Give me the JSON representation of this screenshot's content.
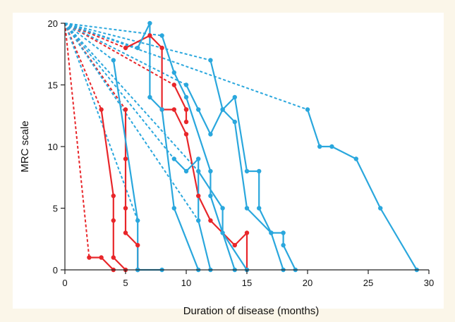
{
  "chart_data": {
    "type": "line",
    "title": "",
    "xlabel": "Duration of disease (months)",
    "ylabel": "MRC scale",
    "xlim": [
      0,
      30
    ],
    "ylim": [
      0,
      20
    ],
    "x_ticks": [
      "0",
      "5",
      "10",
      "15",
      "20",
      "25",
      "30"
    ],
    "y_ticks": [
      "0",
      "5",
      "10",
      "15",
      "20"
    ],
    "grid": false,
    "legend": "none",
    "start_point": {
      "x": 0,
      "y": 20
    },
    "colors": {
      "red": "#e8262a",
      "blue": "#2aa7dd"
    },
    "series": [
      {
        "color": "red",
        "values": [
          [
            2,
            1
          ],
          [
            3,
            1
          ],
          [
            4,
            0
          ]
        ]
      },
      {
        "color": "red",
        "values": [
          [
            3,
            13
          ],
          [
            4,
            6
          ],
          [
            4,
            4
          ],
          [
            4,
            1
          ],
          [
            5,
            0
          ]
        ]
      },
      {
        "color": "red",
        "values": [
          [
            5,
            13
          ],
          [
            5,
            9
          ],
          [
            5,
            5
          ],
          [
            5,
            3
          ],
          [
            6,
            2
          ],
          [
            6,
            0
          ]
        ]
      },
      {
        "color": "red",
        "values": [
          [
            5,
            18
          ],
          [
            7,
            19
          ],
          [
            8,
            18
          ],
          [
            8,
            13
          ],
          [
            9,
            13
          ],
          [
            10,
            11
          ],
          [
            11,
            6
          ],
          [
            12,
            4
          ],
          [
            14,
            2
          ],
          [
            15,
            3
          ],
          [
            15,
            0
          ]
        ]
      },
      {
        "color": "red",
        "values": [
          [
            9,
            15
          ],
          [
            10,
            13
          ],
          [
            10,
            12
          ],
          [
            10,
            13
          ]
        ]
      },
      {
        "color": "blue",
        "values": [
          [
            4,
            17
          ],
          [
            6,
            4
          ],
          [
            6,
            0
          ]
        ]
      },
      {
        "color": "blue",
        "values": [
          [
            6,
            18
          ],
          [
            7,
            20
          ],
          [
            7,
            14
          ],
          [
            8,
            13
          ],
          [
            9,
            5
          ],
          [
            11,
            0
          ]
        ]
      },
      {
        "color": "blue",
        "values": [
          [
            8,
            19
          ],
          [
            9,
            16
          ],
          [
            10,
            14
          ],
          [
            12,
            8
          ],
          [
            12,
            6
          ],
          [
            14,
            0
          ]
        ]
      },
      {
        "color": "blue",
        "values": [
          [
            9,
            9
          ],
          [
            10,
            8
          ],
          [
            11,
            9
          ],
          [
            11,
            4
          ],
          [
            12,
            0
          ]
        ]
      },
      {
        "color": "blue",
        "values": [
          [
            10,
            15
          ],
          [
            11,
            13
          ],
          [
            12,
            11
          ],
          [
            13,
            13
          ],
          [
            14,
            14
          ],
          [
            15,
            8
          ],
          [
            16,
            8
          ],
          [
            16,
            5
          ],
          [
            17,
            3
          ],
          [
            18,
            3
          ],
          [
            18,
            2
          ],
          [
            19,
            0
          ]
        ]
      },
      {
        "color": "blue",
        "values": [
          [
            12,
            17
          ],
          [
            13,
            13
          ],
          [
            14,
            12
          ],
          [
            15,
            5
          ],
          [
            17,
            3
          ],
          [
            18,
            0
          ]
        ]
      },
      {
        "color": "blue",
        "values": [
          [
            11,
            8
          ],
          [
            13,
            5
          ],
          [
            13,
            3
          ],
          [
            15,
            0
          ]
        ]
      },
      {
        "color": "blue",
        "values": [
          [
            20,
            13
          ],
          [
            21,
            10
          ],
          [
            22,
            10
          ],
          [
            24,
            9
          ],
          [
            26,
            5
          ],
          [
            29,
            0
          ]
        ]
      },
      {
        "color": "blue",
        "values": [
          [
            6,
            0
          ],
          [
            8,
            0
          ]
        ]
      }
    ],
    "dashed_onset": [
      {
        "color": "red",
        "to": [
          2,
          1
        ]
      },
      {
        "color": "red",
        "to": [
          3,
          13
        ]
      },
      {
        "color": "red",
        "to": [
          5,
          13
        ]
      },
      {
        "color": "red",
        "to": [
          5,
          18
        ]
      },
      {
        "color": "red",
        "to": [
          9,
          15
        ]
      },
      {
        "color": "blue",
        "to": [
          4,
          17
        ]
      },
      {
        "color": "blue",
        "to": [
          6,
          4
        ]
      },
      {
        "color": "blue",
        "to": [
          6,
          18
        ]
      },
      {
        "color": "blue",
        "to": [
          8,
          19
        ]
      },
      {
        "color": "blue",
        "to": [
          9,
          9
        ]
      },
      {
        "color": "blue",
        "to": [
          10,
          15
        ]
      },
      {
        "color": "blue",
        "to": [
          11,
          8
        ]
      },
      {
        "color": "blue",
        "to": [
          12,
          17
        ]
      },
      {
        "color": "blue",
        "to": [
          20,
          13
        ]
      },
      {
        "color": "blue",
        "to": [
          11,
          4
        ]
      }
    ]
  }
}
